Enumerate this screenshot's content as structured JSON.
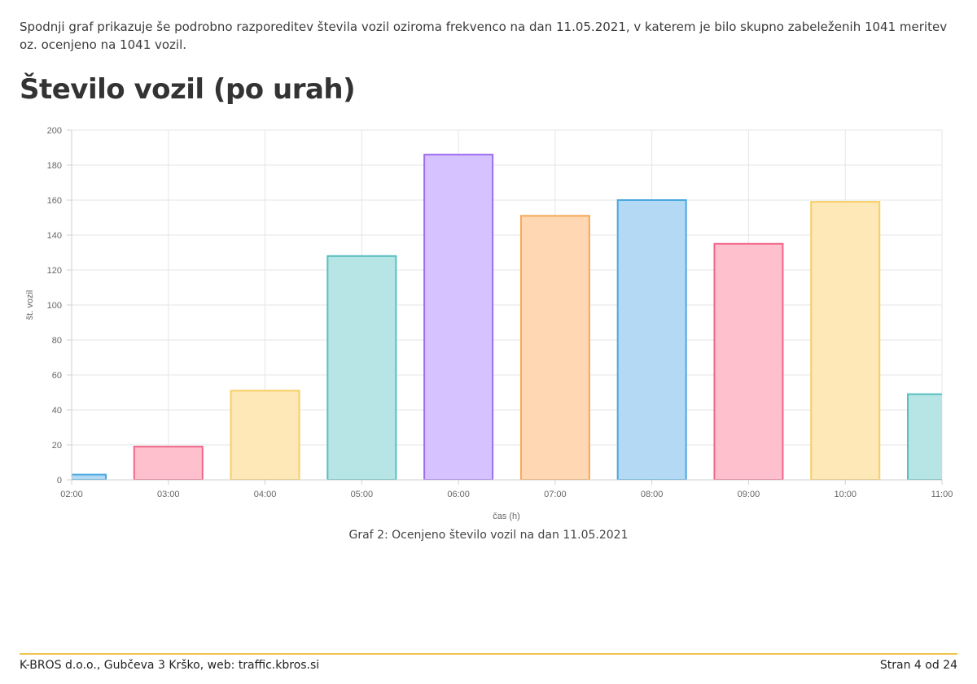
{
  "intro_text": "Spodnji graf prikazuje še podrobno razporeditev števila vozil oziroma frekvenco na dan 11.05.2021, v katerem je bilo skupno zabeleženih 1041 meritev oz. ocenjeno na 1041 vozil.",
  "heading": "Število vozil (po urah)",
  "caption": "Graf 2: Ocenjeno število vozil na dan 11.05.2021",
  "footer": {
    "left": "K-BROS d.o.o., Gubčeva 3 Krško, web: traffic.kbros.si",
    "right": "Stran 4 od 24"
  },
  "chart_data": {
    "type": "bar",
    "title": "",
    "xlabel": "čas (h)",
    "ylabel": "št. vozil",
    "ylim": [
      0,
      200
    ],
    "yticks": [
      0,
      20,
      40,
      60,
      80,
      100,
      120,
      140,
      160,
      180,
      200
    ],
    "xtick_labels": [
      "02:00",
      "03:00",
      "04:00",
      "05:00",
      "06:00",
      "07:00",
      "08:00",
      "09:00",
      "10:00",
      "11:00"
    ],
    "grid": true,
    "legend": "none",
    "bars": [
      {
        "hour": "02:00",
        "value": 3,
        "fill": "#b3d9f5",
        "stroke": "#4aa8e0"
      },
      {
        "hour": "03:00",
        "value": 19,
        "fill": "#ffc0cd",
        "stroke": "#f0668a"
      },
      {
        "hour": "04:00",
        "value": 51,
        "fill": "#ffe8b8",
        "stroke": "#f6cf62"
      },
      {
        "hour": "05:00",
        "value": 128,
        "fill": "#b7e5e5",
        "stroke": "#56bfbf"
      },
      {
        "hour": "06:00",
        "value": 186,
        "fill": "#d6c2ff",
        "stroke": "#9d6cf0"
      },
      {
        "hour": "07:00",
        "value": 151,
        "fill": "#ffd7b2",
        "stroke": "#f5a954"
      },
      {
        "hour": "08:00",
        "value": 160,
        "fill": "#b3d9f5",
        "stroke": "#4aa8e0"
      },
      {
        "hour": "09:00",
        "value": 135,
        "fill": "#ffc0cd",
        "stroke": "#f0668a"
      },
      {
        "hour": "10:00",
        "value": 159,
        "fill": "#ffe8b8",
        "stroke": "#f6cf62"
      },
      {
        "hour": "11:00",
        "value": 49,
        "fill": "#b7e5e5",
        "stroke": "#56bfbf"
      }
    ]
  }
}
